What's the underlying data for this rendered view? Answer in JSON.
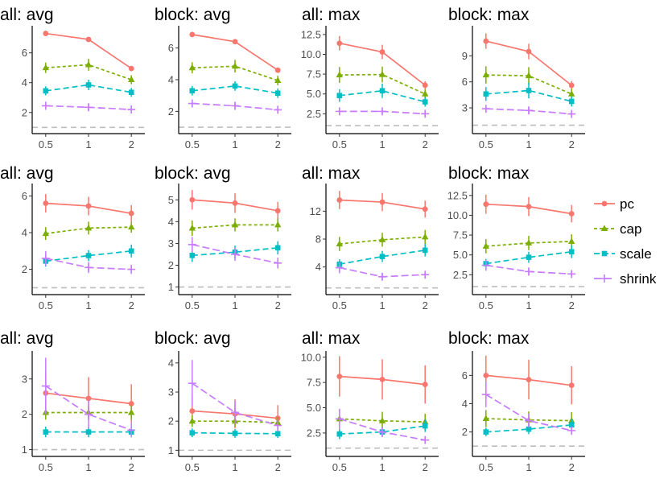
{
  "series_styles": [
    {
      "name": "pc",
      "color": "#F8766D",
      "marker": "circle",
      "dash": "none"
    },
    {
      "name": "cap",
      "color": "#7CAE00",
      "marker": "triangle",
      "dash": "4 3"
    },
    {
      "name": "scale",
      "color": "#00BFC4",
      "marker": "square",
      "dash": "7 4"
    },
    {
      "name": "shrink",
      "color": "#C77CFF",
      "marker": "plus",
      "dash": "9 4"
    }
  ],
  "legend": {
    "items": [
      "pc",
      "cap",
      "scale",
      "shrink"
    ]
  },
  "reference_line_y": 1,
  "chart_data": [
    {
      "type": "line",
      "title": "all: avg",
      "categories": [
        "0.5",
        "1",
        "2"
      ],
      "ylim": [
        0.8,
        7.6
      ],
      "yticks": [
        "2",
        "4",
        "6"
      ],
      "series": [
        {
          "name": "pc",
          "values": [
            7.3,
            6.9,
            4.95
          ],
          "err": [
            0.15,
            0.15,
            0.1
          ]
        },
        {
          "name": "cap",
          "values": [
            5.0,
            5.2,
            4.2
          ],
          "err": [
            0.35,
            0.4,
            0.3
          ]
        },
        {
          "name": "scale",
          "values": [
            3.45,
            3.85,
            3.35
          ],
          "err": [
            0.3,
            0.35,
            0.3
          ]
        },
        {
          "name": "shrink",
          "values": [
            2.45,
            2.35,
            2.2
          ],
          "err": [
            0.25,
            0.25,
            0.2
          ]
        }
      ]
    },
    {
      "type": "line",
      "title": "block: avg",
      "categories": [
        "0.5",
        "1",
        "2"
      ],
      "ylim": [
        0.8,
        7.2
      ],
      "yticks": [
        "2",
        "4",
        "6"
      ],
      "series": [
        {
          "name": "pc",
          "values": [
            6.85,
            6.4,
            4.6
          ],
          "err": [
            0.15,
            0.15,
            0.1
          ]
        },
        {
          "name": "cap",
          "values": [
            4.75,
            4.85,
            3.95
          ],
          "err": [
            0.35,
            0.4,
            0.3
          ]
        },
        {
          "name": "scale",
          "values": [
            3.3,
            3.6,
            3.15
          ],
          "err": [
            0.3,
            0.3,
            0.3
          ]
        },
        {
          "name": "shrink",
          "values": [
            2.5,
            2.35,
            2.1
          ],
          "err": [
            0.25,
            0.25,
            0.2
          ]
        }
      ]
    },
    {
      "type": "line",
      "title": "all: max",
      "categories": [
        "0.5",
        "1",
        "2"
      ],
      "ylim": [
        0.4,
        13.2
      ],
      "yticks": [
        "2.5",
        "5.0",
        "7.5",
        "10.0",
        "12.5"
      ],
      "series": [
        {
          "name": "pc",
          "values": [
            11.4,
            10.3,
            6.1
          ],
          "err": [
            0.9,
            0.9,
            0.5
          ]
        },
        {
          "name": "cap",
          "values": [
            7.4,
            7.45,
            5.0
          ],
          "err": [
            1.0,
            1.0,
            0.6
          ]
        },
        {
          "name": "scale",
          "values": [
            4.8,
            5.4,
            4.0
          ],
          "err": [
            0.8,
            0.9,
            0.6
          ]
        },
        {
          "name": "shrink",
          "values": [
            2.8,
            2.8,
            2.5
          ],
          "err": [
            0.4,
            0.4,
            0.35
          ]
        }
      ]
    },
    {
      "type": "line",
      "title": "block: max",
      "categories": [
        "0.5",
        "1",
        "2"
      ],
      "ylim": [
        0.4,
        12.1
      ],
      "yticks": [
        "3",
        "6",
        "9"
      ],
      "series": [
        {
          "name": "pc",
          "values": [
            10.7,
            9.5,
            5.6
          ],
          "err": [
            0.9,
            0.9,
            0.5
          ]
        },
        {
          "name": "cap",
          "values": [
            6.8,
            6.7,
            4.6
          ],
          "err": [
            1.0,
            1.0,
            0.6
          ]
        },
        {
          "name": "scale",
          "values": [
            4.6,
            5.0,
            3.75
          ],
          "err": [
            0.8,
            0.9,
            0.6
          ]
        },
        {
          "name": "shrink",
          "values": [
            2.9,
            2.7,
            2.3
          ],
          "err": [
            0.4,
            0.4,
            0.35
          ]
        }
      ]
    },
    {
      "type": "line",
      "title": "all: avg",
      "categories": [
        "0.5",
        "1",
        "2"
      ],
      "ylim": [
        0.8,
        6.5
      ],
      "yticks": [
        "2",
        "4",
        "6"
      ],
      "series": [
        {
          "name": "pc",
          "values": [
            5.6,
            5.45,
            5.05
          ],
          "err": [
            0.5,
            0.5,
            0.45
          ]
        },
        {
          "name": "cap",
          "values": [
            3.95,
            4.25,
            4.3
          ],
          "err": [
            0.35,
            0.35,
            0.3
          ]
        },
        {
          "name": "scale",
          "values": [
            2.45,
            2.75,
            3.0
          ],
          "err": [
            0.3,
            0.3,
            0.35
          ]
        },
        {
          "name": "shrink",
          "values": [
            2.6,
            2.1,
            2.0
          ],
          "err": [
            0.4,
            0.3,
            0.25
          ]
        }
      ]
    },
    {
      "type": "line",
      "title": "block: avg",
      "categories": [
        "0.5",
        "1",
        "2"
      ],
      "ylim": [
        0.8,
        5.6
      ],
      "yticks": [
        "1",
        "2",
        "3",
        "4",
        "5"
      ],
      "series": [
        {
          "name": "pc",
          "values": [
            5.0,
            4.85,
            4.5
          ],
          "err": [
            0.45,
            0.45,
            0.4
          ]
        },
        {
          "name": "cap",
          "values": [
            3.7,
            3.85,
            3.85
          ],
          "err": [
            0.35,
            0.3,
            0.3
          ]
        },
        {
          "name": "scale",
          "values": [
            2.45,
            2.6,
            2.8
          ],
          "err": [
            0.3,
            0.3,
            0.3
          ]
        },
        {
          "name": "shrink",
          "values": [
            2.95,
            2.5,
            2.1
          ],
          "err": [
            0.35,
            0.3,
            0.25
          ]
        }
      ]
    },
    {
      "type": "line",
      "title": "all: max",
      "categories": [
        "0.5",
        "1",
        "2"
      ],
      "ylim": [
        0.5,
        15.5
      ],
      "yticks": [
        "4",
        "8",
        "12"
      ],
      "series": [
        {
          "name": "pc",
          "values": [
            13.6,
            13.3,
            12.3
          ],
          "err": [
            1.3,
            1.3,
            1.2
          ]
        },
        {
          "name": "cap",
          "values": [
            7.3,
            7.9,
            8.3
          ],
          "err": [
            1.0,
            1.0,
            1.0
          ]
        },
        {
          "name": "scale",
          "values": [
            4.4,
            5.5,
            6.4
          ],
          "err": [
            0.7,
            0.8,
            0.9
          ]
        },
        {
          "name": "shrink",
          "values": [
            3.9,
            2.6,
            2.9
          ],
          "err": [
            0.8,
            0.5,
            0.5
          ]
        }
      ]
    },
    {
      "type": "line",
      "title": "block: max",
      "categories": [
        "0.5",
        "1",
        "2"
      ],
      "ylim": [
        0.4,
        13.6
      ],
      "yticks": [
        "2.5",
        "5.0",
        "7.5",
        "10.0",
        "12.5"
      ],
      "series": [
        {
          "name": "pc",
          "values": [
            11.4,
            11.1,
            10.2
          ],
          "err": [
            1.2,
            1.2,
            1.1
          ]
        },
        {
          "name": "cap",
          "values": [
            6.1,
            6.5,
            6.7
          ],
          "err": [
            0.9,
            0.9,
            0.9
          ]
        },
        {
          "name": "scale",
          "values": [
            3.9,
            4.7,
            5.4
          ],
          "err": [
            0.6,
            0.7,
            0.8
          ]
        },
        {
          "name": "shrink",
          "values": [
            3.7,
            2.9,
            2.6
          ],
          "err": [
            0.7,
            0.5,
            0.4
          ]
        }
      ]
    },
    {
      "type": "line",
      "title": "all: avg",
      "categories": [
        "0.5",
        "1",
        "2"
      ],
      "ylim": [
        0.9,
        3.7
      ],
      "yticks": [
        "1",
        "2",
        "3"
      ],
      "series": [
        {
          "name": "pc",
          "values": [
            2.6,
            2.45,
            2.3
          ],
          "err": [
            0.6,
            0.6,
            0.55
          ]
        },
        {
          "name": "cap",
          "values": [
            2.05,
            2.05,
            2.05
          ],
          "err": [
            0.2,
            0.2,
            0.2
          ]
        },
        {
          "name": "scale",
          "values": [
            1.5,
            1.5,
            1.5
          ],
          "err": [
            0.15,
            0.15,
            0.15
          ]
        },
        {
          "name": "shrink",
          "values": [
            2.8,
            2.0,
            1.55
          ],
          "err": [
            0.8,
            0.4,
            0.2
          ]
        }
      ]
    },
    {
      "type": "line",
      "title": "block: avg",
      "categories": [
        "0.5",
        "1",
        "2"
      ],
      "ylim": [
        0.9,
        4.3
      ],
      "yticks": [
        "1",
        "2",
        "3",
        "4"
      ],
      "series": [
        {
          "name": "pc",
          "values": [
            2.35,
            2.25,
            2.1
          ],
          "err": [
            0.5,
            0.5,
            0.45
          ]
        },
        {
          "name": "cap",
          "values": [
            2.0,
            2.0,
            1.95
          ],
          "err": [
            0.2,
            0.2,
            0.2
          ]
        },
        {
          "name": "scale",
          "values": [
            1.6,
            1.58,
            1.57
          ],
          "err": [
            0.15,
            0.15,
            0.15
          ]
        },
        {
          "name": "shrink",
          "values": [
            3.3,
            2.3,
            1.85
          ],
          "err": [
            0.8,
            0.4,
            0.2
          ]
        }
      ]
    },
    {
      "type": "line",
      "title": "all: max",
      "categories": [
        "0.5",
        "1",
        "2"
      ],
      "ylim": [
        0.5,
        10.3
      ],
      "yticks": [
        "2.5",
        "5.0",
        "7.5",
        "10.0"
      ],
      "series": [
        {
          "name": "pc",
          "values": [
            8.1,
            7.8,
            7.3
          ],
          "err": [
            2.0,
            2.0,
            1.9
          ]
        },
        {
          "name": "cap",
          "values": [
            3.9,
            3.7,
            3.6
          ],
          "err": [
            0.9,
            0.9,
            0.8
          ]
        },
        {
          "name": "scale",
          "values": [
            2.4,
            2.6,
            3.2
          ],
          "err": [
            0.5,
            0.5,
            0.6
          ]
        },
        {
          "name": "shrink",
          "values": [
            3.9,
            2.6,
            1.8
          ],
          "err": [
            1.0,
            0.5,
            0.3
          ]
        }
      ]
    },
    {
      "type": "line",
      "title": "block: max",
      "categories": [
        "0.5",
        "1",
        "2"
      ],
      "ylim": [
        0.5,
        7.5
      ],
      "yticks": [
        "2",
        "4",
        "6"
      ],
      "series": [
        {
          "name": "pc",
          "values": [
            6.0,
            5.7,
            5.3
          ],
          "err": [
            1.4,
            1.4,
            1.35
          ]
        },
        {
          "name": "cap",
          "values": [
            2.95,
            2.85,
            2.8
          ],
          "err": [
            0.6,
            0.6,
            0.6
          ]
        },
        {
          "name": "scale",
          "values": [
            2.0,
            2.2,
            2.5
          ],
          "err": [
            0.3,
            0.35,
            0.4
          ]
        },
        {
          "name": "shrink",
          "values": [
            4.65,
            2.8,
            2.1
          ],
          "err": [
            0.9,
            0.5,
            0.3
          ]
        }
      ]
    }
  ]
}
